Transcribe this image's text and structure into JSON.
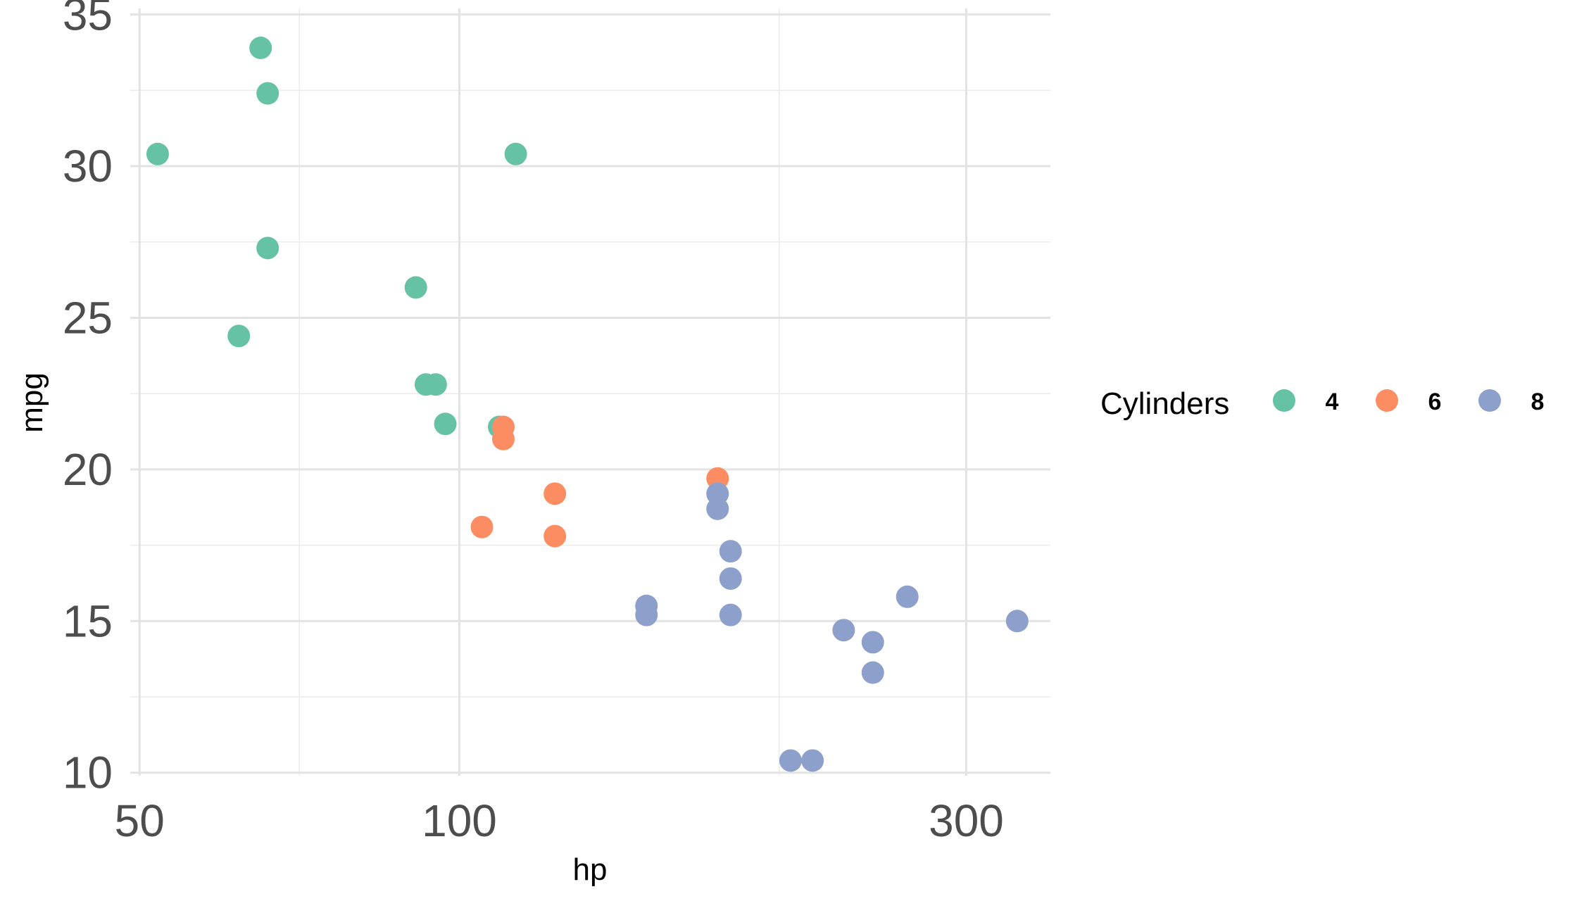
{
  "chart_data": {
    "type": "scatter",
    "title": "",
    "xlabel": "hp",
    "ylabel": "mpg",
    "x_scale": "log",
    "xlim": [
      49,
      360
    ],
    "ylim": [
      9.9,
      35.2
    ],
    "x_ticks": [
      {
        "value": 50,
        "label": "50"
      },
      {
        "value": 100,
        "label": "100"
      },
      {
        "value": 300,
        "label": "300"
      }
    ],
    "x_minor_ticks": [
      70.7,
      200
    ],
    "y_ticks": [
      {
        "value": 10,
        "label": "10"
      },
      {
        "value": 15,
        "label": "15"
      },
      {
        "value": 20,
        "label": "20"
      },
      {
        "value": 25,
        "label": "25"
      },
      {
        "value": 30,
        "label": "30"
      },
      {
        "value": 35,
        "label": "35"
      }
    ],
    "y_minor_ticks": [
      12.5,
      17.5,
      22.5,
      27.5,
      32.5
    ],
    "grid": true,
    "legend": {
      "title": "Cylinders",
      "position": "right"
    },
    "series": [
      {
        "name": "4",
        "color": "#66c2a5",
        "points": [
          {
            "x": 52,
            "y": 30.4
          },
          {
            "x": 65,
            "y": 33.9
          },
          {
            "x": 66,
            "y": 32.4
          },
          {
            "x": 66,
            "y": 27.3
          },
          {
            "x": 62,
            "y": 24.4
          },
          {
            "x": 91,
            "y": 26.0
          },
          {
            "x": 93,
            "y": 22.8
          },
          {
            "x": 95,
            "y": 22.8
          },
          {
            "x": 97,
            "y": 21.5
          },
          {
            "x": 109,
            "y": 21.4
          },
          {
            "x": 113,
            "y": 30.4
          }
        ]
      },
      {
        "name": "6",
        "color": "#fc8d62",
        "points": [
          {
            "x": 110,
            "y": 21.0
          },
          {
            "x": 110,
            "y": 21.4
          },
          {
            "x": 105,
            "y": 18.1
          },
          {
            "x": 123,
            "y": 19.2
          },
          {
            "x": 123,
            "y": 17.8
          },
          {
            "x": 175,
            "y": 19.7
          }
        ]
      },
      {
        "name": "8",
        "color": "#8da0cb",
        "points": [
          {
            "x": 150,
            "y": 15.5
          },
          {
            "x": 150,
            "y": 15.2
          },
          {
            "x": 175,
            "y": 19.2
          },
          {
            "x": 175,
            "y": 18.7
          },
          {
            "x": 180,
            "y": 17.3
          },
          {
            "x": 180,
            "y": 16.4
          },
          {
            "x": 180,
            "y": 15.2
          },
          {
            "x": 205,
            "y": 10.4
          },
          {
            "x": 215,
            "y": 10.4
          },
          {
            "x": 230,
            "y": 14.7
          },
          {
            "x": 245,
            "y": 14.3
          },
          {
            "x": 245,
            "y": 13.3
          },
          {
            "x": 264,
            "y": 15.8
          },
          {
            "x": 335,
            "y": 15.0
          }
        ]
      }
    ]
  }
}
